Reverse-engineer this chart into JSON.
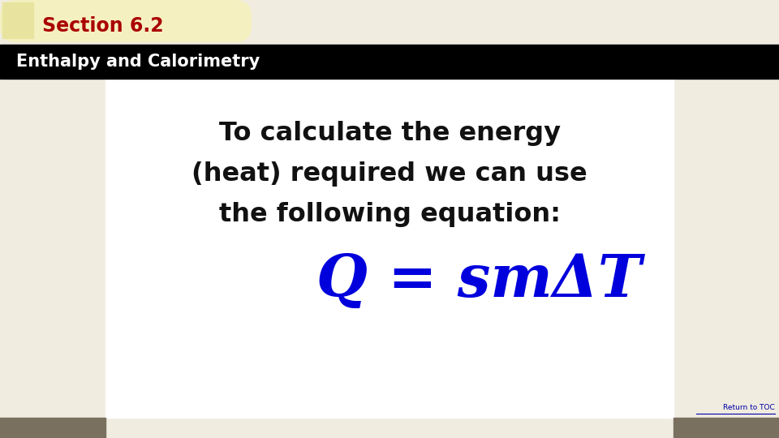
{
  "section_label": "Section 6.2",
  "section_color": "#aa0000",
  "subtitle": "Enthalpy and Calorimetry",
  "subtitle_color": "#ffffff",
  "subtitle_bg": "#000000",
  "body_text_line1": "To calculate the energy",
  "body_text_line2": "(heat) required we can use",
  "body_text_line3": "the following equation:",
  "body_text_color": "#111111",
  "equation": "Q = smΔT",
  "equation_color": "#0000dd",
  "bg_beige": "#f0ece0",
  "bg_center": "#ffffff",
  "tab_bg": "#f5f0c0",
  "tab_yellow_sq": "#e8e4a0",
  "footer_color": "#7a7060",
  "return_toc": "Return to TOC",
  "return_toc_color": "#0000aa",
  "fig_width": 9.6,
  "fig_height": 5.4,
  "dpi": 100
}
